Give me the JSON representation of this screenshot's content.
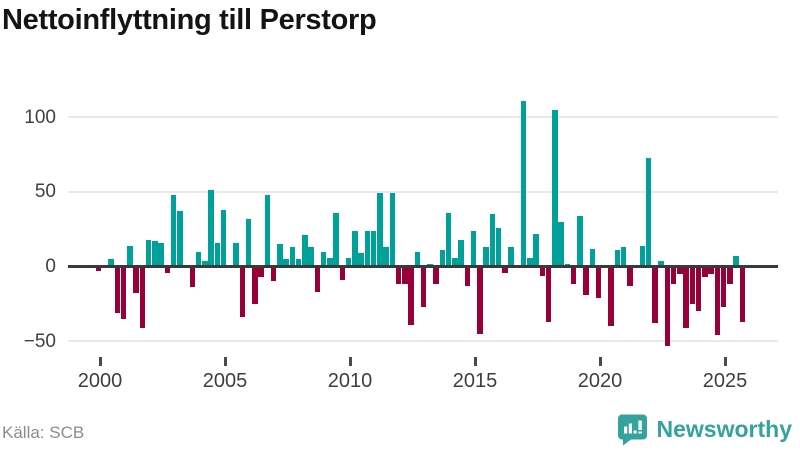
{
  "title": "Nettoinflyttning till Perstorp",
  "source": "Källa: SCB",
  "logo": {
    "text": "Newsworthy",
    "color": "#35a39d"
  },
  "chart_data": {
    "type": "bar",
    "title": "Nettoinflyttning till Perstorp",
    "frequency": "quarterly",
    "start_quarter": "1999 Q4",
    "end_quarter": "2025 Q3",
    "values": [
      -3,
      0,
      5,
      -31,
      -35,
      14,
      -18,
      -41,
      18,
      17,
      16,
      -4,
      48,
      37,
      0,
      -14,
      10,
      4,
      51,
      16,
      38,
      0,
      16,
      -34,
      32,
      -25,
      -7,
      48,
      -10,
      15,
      5,
      13,
      5,
      21,
      13,
      -17,
      10,
      6,
      36,
      -9,
      6,
      24,
      9,
      24,
      24,
      49,
      13,
      49,
      -12,
      -12,
      -39,
      10,
      -27,
      2,
      -12,
      11,
      36,
      6,
      18,
      -13,
      24,
      -45,
      13,
      35,
      26,
      -4,
      13,
      0,
      111,
      6,
      22,
      -6,
      -37,
      105,
      30,
      2,
      -12,
      34,
      -19,
      12,
      -21,
      0,
      -40,
      11,
      13,
      -13,
      0,
      14,
      73,
      -38,
      4,
      -53,
      -12,
      -5,
      -41,
      -25,
      -30,
      -7,
      -5,
      -46,
      -27,
      -12,
      7,
      -37
    ],
    "positive_color": "#00a09b",
    "negative_color": "#990038",
    "x_tick_labels": [
      "2000",
      "2005",
      "2010",
      "2015",
      "2020",
      "2025"
    ],
    "y_ticks": [
      100,
      50,
      0,
      -50
    ],
    "y_tick_labels": [
      "100",
      "50",
      "0",
      "−50"
    ],
    "ylim": [
      -60,
      120
    ],
    "grid": "horizontal",
    "legend": "none",
    "xlabel": "",
    "ylabel": ""
  }
}
